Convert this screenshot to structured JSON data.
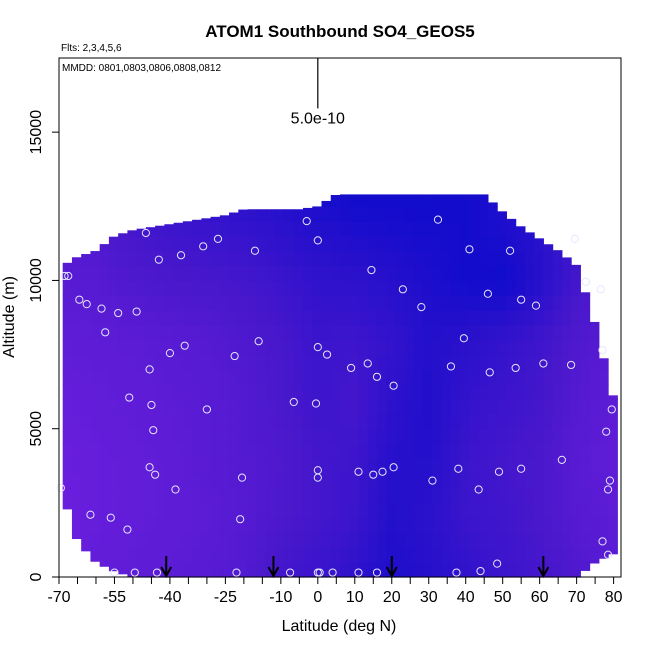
{
  "chart_data": {
    "type": "heatmap",
    "title": "ATOM1 Southbound SO4_GEOS5",
    "subtitle_flights": "Flts: 2,3,4,5,6",
    "dates_label": "MMDD: 0801,0803,0806,0808,0812",
    "xlabel": "Latitude (deg N)",
    "ylabel": "Altitude (m)",
    "xlim": [
      -70,
      82
    ],
    "ylim": [
      0,
      17500
    ],
    "x_ticks": [
      -70,
      -55,
      -40,
      -25,
      -10,
      0,
      10,
      20,
      30,
      40,
      50,
      60,
      70,
      80
    ],
    "x_tick_labels": [
      "-70",
      "-55",
      "-40",
      "-25",
      "-10",
      "0",
      "10",
      "20",
      "30",
      "40",
      "50",
      "60",
      "70",
      "80"
    ],
    "x_minor_ticks": [
      -65,
      -60,
      -50,
      -45,
      -35,
      -30,
      -20,
      -15,
      -5,
      5,
      15,
      25,
      35,
      45,
      55,
      65,
      75
    ],
    "y_ticks": [
      0,
      5000,
      10000,
      15000
    ],
    "y_tick_labels": [
      "0",
      "5000",
      "10000",
      "15000"
    ],
    "scale_bar": {
      "label": "5.0e-10",
      "x": 0,
      "y_bottom": 15800,
      "y_top": 17500
    },
    "colormap": {
      "low": "#7a22e6",
      "mid": "#4a18cc",
      "high": "#0a0acc"
    },
    "arrows_at_latitude": [
      -41,
      -12,
      20,
      61
    ],
    "envelope_latitudes": [
      -69,
      -65,
      -60,
      -55,
      -50,
      -45,
      -40,
      -35,
      -30,
      -25,
      -20,
      -15,
      -10,
      -5,
      0,
      5,
      10,
      15,
      20,
      25,
      30,
      35,
      40,
      45,
      50,
      55,
      60,
      65,
      70,
      75,
      80
    ],
    "envelope_top_altitude": [
      10500,
      10800,
      11000,
      11500,
      11700,
      11800,
      11900,
      12000,
      12100,
      12200,
      12400,
      12400,
      12400,
      12400,
      12500,
      12900,
      12900,
      12900,
      12900,
      12900,
      12900,
      12900,
      12900,
      12900,
      12300,
      11800,
      11400,
      11000,
      10500,
      8500,
      6000
    ],
    "envelope_bottom_altitude": [
      2800,
      1200,
      500,
      200,
      0,
      0,
      0,
      0,
      0,
      0,
      0,
      0,
      0,
      0,
      0,
      0,
      0,
      0,
      0,
      0,
      0,
      0,
      0,
      0,
      0,
      0,
      0,
      0,
      0,
      500,
      800
    ],
    "field_latitudes": [
      -69,
      -60,
      -50,
      -40,
      -30,
      -20,
      -10,
      0,
      10,
      20,
      30,
      40,
      50,
      60,
      70,
      80
    ],
    "field_altitudes": [
      0,
      2000,
      4000,
      6000,
      8000,
      10000,
      12000,
      13000
    ],
    "field_intensity": [
      [
        0.2,
        0.25,
        0.28,
        0.32,
        0.35,
        0.42,
        0.55,
        0.62,
        0.72,
        0.85,
        0.78,
        0.7,
        0.62,
        0.55,
        0.45,
        0.35
      ],
      [
        0.15,
        0.22,
        0.25,
        0.28,
        0.32,
        0.38,
        0.48,
        0.55,
        0.62,
        0.8,
        0.74,
        0.62,
        0.58,
        0.5,
        0.38,
        0.3
      ],
      [
        0.18,
        0.22,
        0.25,
        0.28,
        0.35,
        0.4,
        0.45,
        0.55,
        0.6,
        0.78,
        0.8,
        0.62,
        0.55,
        0.5,
        0.35,
        0.28
      ],
      [
        0.22,
        0.25,
        0.28,
        0.32,
        0.35,
        0.4,
        0.5,
        0.6,
        0.55,
        0.72,
        0.82,
        0.68,
        0.62,
        0.55,
        0.4,
        0.3
      ],
      [
        0.28,
        0.3,
        0.32,
        0.35,
        0.38,
        0.45,
        0.52,
        0.62,
        0.6,
        0.68,
        0.8,
        0.75,
        0.68,
        0.6,
        0.45,
        0.35
      ],
      [
        0.35,
        0.38,
        0.45,
        0.5,
        0.52,
        0.55,
        0.62,
        0.7,
        0.72,
        0.78,
        0.85,
        0.92,
        0.95,
        0.78,
        0.55,
        0.45
      ],
      [
        0.4,
        0.45,
        0.55,
        0.62,
        0.65,
        0.7,
        0.75,
        0.82,
        0.88,
        0.9,
        0.92,
        0.92,
        0.85,
        0.75,
        0.6,
        0.5
      ],
      [
        0.5,
        0.55,
        0.6,
        0.68,
        0.72,
        0.78,
        0.82,
        0.9,
        0.95,
        0.95,
        0.95,
        0.92,
        0.85,
        0.78,
        0.65,
        0.55
      ]
    ],
    "observations": [
      {
        "lat": -68.5,
        "alt": 10150
      },
      {
        "lat": -67.5,
        "alt": 10150
      },
      {
        "lat": -64.5,
        "alt": 9350
      },
      {
        "lat": -62.5,
        "alt": 9200
      },
      {
        "lat": -58.5,
        "alt": 9050
      },
      {
        "lat": -57.5,
        "alt": 8250
      },
      {
        "lat": -54,
        "alt": 8900
      },
      {
        "lat": -49,
        "alt": 8950
      },
      {
        "lat": -46.5,
        "alt": 11600
      },
      {
        "lat": -43,
        "alt": 10700
      },
      {
        "lat": -37,
        "alt": 10850
      },
      {
        "lat": -31,
        "alt": 11150
      },
      {
        "lat": -27,
        "alt": 11400
      },
      {
        "lat": -17,
        "alt": 11000
      },
      {
        "lat": -3,
        "alt": 12000
      },
      {
        "lat": 0,
        "alt": 11350
      },
      {
        "lat": 32.5,
        "alt": 12050
      },
      {
        "lat": 41,
        "alt": 11050
      },
      {
        "lat": 52,
        "alt": 11000
      },
      {
        "lat": 69.5,
        "alt": 11400
      },
      {
        "lat": 72.5,
        "alt": 9950
      },
      {
        "lat": 76.5,
        "alt": 9700
      },
      {
        "lat": 14.5,
        "alt": 10350
      },
      {
        "lat": 23,
        "alt": 9700
      },
      {
        "lat": 46,
        "alt": 9550
      },
      {
        "lat": 55,
        "alt": 9350
      },
      {
        "lat": 59,
        "alt": 9150
      },
      {
        "lat": 28,
        "alt": 9100
      },
      {
        "lat": 39.5,
        "alt": 8050
      },
      {
        "lat": -36,
        "alt": 7800
      },
      {
        "lat": -40,
        "alt": 7550
      },
      {
        "lat": -45.5,
        "alt": 7000
      },
      {
        "lat": -22.5,
        "alt": 7450
      },
      {
        "lat": -16,
        "alt": 7950
      },
      {
        "lat": 0,
        "alt": 7750
      },
      {
        "lat": 2.5,
        "alt": 7500
      },
      {
        "lat": 9,
        "alt": 7050
      },
      {
        "lat": 13.5,
        "alt": 7200
      },
      {
        "lat": 16,
        "alt": 6750
      },
      {
        "lat": 20.5,
        "alt": 6450
      },
      {
        "lat": 36,
        "alt": 7100
      },
      {
        "lat": 46.5,
        "alt": 6900
      },
      {
        "lat": 53.5,
        "alt": 7050
      },
      {
        "lat": 61,
        "alt": 7200
      },
      {
        "lat": 68.5,
        "alt": 7150
      },
      {
        "lat": 77,
        "alt": 7650
      },
      {
        "lat": -51,
        "alt": 6050
      },
      {
        "lat": -45,
        "alt": 5800
      },
      {
        "lat": -30,
        "alt": 5650
      },
      {
        "lat": -6.5,
        "alt": 5900
      },
      {
        "lat": -0.5,
        "alt": 5850
      },
      {
        "lat": 79.5,
        "alt": 5650
      },
      {
        "lat": -44.5,
        "alt": 4950
      },
      {
        "lat": 78,
        "alt": 4900
      },
      {
        "lat": -45.5,
        "alt": 3700
      },
      {
        "lat": -44,
        "alt": 3450
      },
      {
        "lat": -38.5,
        "alt": 2950
      },
      {
        "lat": -20.5,
        "alt": 3350
      },
      {
        "lat": 0,
        "alt": 3600
      },
      {
        "lat": 0,
        "alt": 3350
      },
      {
        "lat": 11,
        "alt": 3550
      },
      {
        "lat": 15,
        "alt": 3450
      },
      {
        "lat": 17.5,
        "alt": 3550
      },
      {
        "lat": 20.5,
        "alt": 3700
      },
      {
        "lat": 31,
        "alt": 3250
      },
      {
        "lat": 38,
        "alt": 3650
      },
      {
        "lat": 43.5,
        "alt": 2950
      },
      {
        "lat": 49,
        "alt": 3550
      },
      {
        "lat": 55,
        "alt": 3650
      },
      {
        "lat": 66,
        "alt": 3950
      },
      {
        "lat": 79,
        "alt": 3250
      },
      {
        "lat": 78.5,
        "alt": 2950
      },
      {
        "lat": -69.5,
        "alt": 3000
      },
      {
        "lat": -61.5,
        "alt": 2100
      },
      {
        "lat": -56,
        "alt": 2000
      },
      {
        "lat": -51.5,
        "alt": 1600
      },
      {
        "lat": -21,
        "alt": 1950
      },
      {
        "lat": 77,
        "alt": 1200
      },
      {
        "lat": 78.5,
        "alt": 750
      },
      {
        "lat": -55,
        "alt": 150
      },
      {
        "lat": -49.5,
        "alt": 150
      },
      {
        "lat": -43.5,
        "alt": 150
      },
      {
        "lat": -22,
        "alt": 150
      },
      {
        "lat": -7.5,
        "alt": 150
      },
      {
        "lat": 0,
        "alt": 150
      },
      {
        "lat": 0.5,
        "alt": 150
      },
      {
        "lat": 4,
        "alt": 150
      },
      {
        "lat": 11,
        "alt": 150
      },
      {
        "lat": 16,
        "alt": 150
      },
      {
        "lat": 37.5,
        "alt": 150
      },
      {
        "lat": 44,
        "alt": 200
      },
      {
        "lat": 48.5,
        "alt": 450
      }
    ]
  }
}
